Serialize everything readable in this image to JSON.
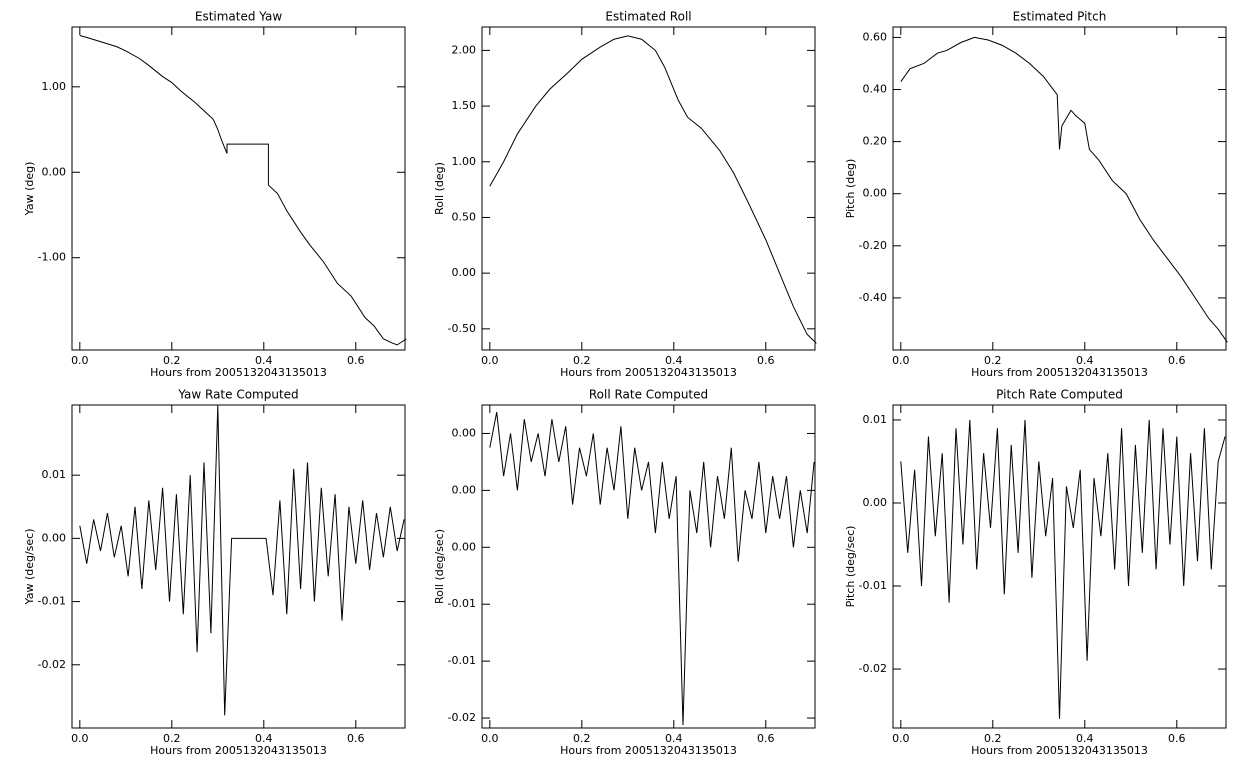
{
  "chart_data": [
    {
      "type": "line",
      "title": "Estimated Yaw",
      "xlabel": "Hours from 2005132043135013",
      "ylabel": "Yaw (deg)",
      "x": [
        0,
        0.02,
        0.05,
        0.08,
        0.1,
        0.13,
        0.15,
        0.18,
        0.2,
        0.22,
        0.25,
        0.27,
        0.29,
        0.3,
        0.31,
        0.32,
        0.32,
        0.41,
        0.41,
        0.43,
        0.45,
        0.48,
        0.5,
        0.53,
        0.56,
        0.59,
        0.62,
        0.64,
        0.66,
        0.68,
        0.69,
        0.71
      ],
      "values": [
        1.6,
        1.57,
        1.52,
        1.47,
        1.42,
        1.33,
        1.25,
        1.12,
        1.05,
        0.95,
        0.82,
        0.72,
        0.62,
        0.5,
        0.35,
        0.22,
        0.33,
        0.33,
        -0.15,
        -0.25,
        -0.45,
        -0.7,
        -0.85,
        -1.05,
        -1.3,
        -1.45,
        -1.7,
        -1.8,
        -1.95,
        -2.0,
        -2.02,
        -1.95
      ],
      "color": "#000000",
      "xlim": [
        -0.017,
        0.707
      ],
      "xticks": [
        {
          "value": 0,
          "label": "0.0"
        },
        0.2,
        0.4,
        0.6
      ],
      "ylim": [
        -2.08,
        1.7
      ],
      "yticks": [
        {
          "value": 1,
          "label": "1.00"
        },
        {
          "value": 0,
          "label": "0.00"
        },
        {
          "value": -1,
          "label": "-1.00"
        }
      ]
    },
    {
      "type": "line",
      "title": "Estimated Roll",
      "xlabel": "Hours from 2005132043135013",
      "ylabel": "Roll (deg)",
      "x": [
        0,
        0.03,
        0.06,
        0.1,
        0.13,
        0.17,
        0.2,
        0.24,
        0.27,
        0.3,
        0.33,
        0.36,
        0.38,
        0.41,
        0.43,
        0.46,
        0.5,
        0.53,
        0.56,
        0.6,
        0.63,
        0.66,
        0.69,
        0.71
      ],
      "values": [
        0.78,
        1.0,
        1.25,
        1.5,
        1.65,
        1.8,
        1.92,
        2.03,
        2.1,
        2.13,
        2.1,
        2.0,
        1.85,
        1.55,
        1.4,
        1.3,
        1.1,
        0.9,
        0.65,
        0.3,
        0.0,
        -0.3,
        -0.55,
        -0.63
      ],
      "color": "#000000",
      "xlim": [
        -0.017,
        0.707
      ],
      "xticks": [
        {
          "value": 0,
          "label": "0.0"
        },
        0.2,
        0.4,
        0.6
      ],
      "ylim": [
        -0.69,
        2.21
      ],
      "yticks": [
        {
          "value": 2,
          "label": "2.00"
        },
        {
          "value": 1.5,
          "label": "1.50"
        },
        {
          "value": 1,
          "label": "1.00"
        },
        {
          "value": 0.5,
          "label": "0.50"
        },
        {
          "value": 0,
          "label": "0.00"
        },
        {
          "value": -0.5,
          "label": "-0.50"
        }
      ]
    },
    {
      "type": "line",
      "title": "Estimated Pitch",
      "xlabel": "Hours from 2005132043135013",
      "ylabel": "Pitch (deg)",
      "x": [
        0,
        0.02,
        0.05,
        0.08,
        0.1,
        0.13,
        0.16,
        0.19,
        0.22,
        0.25,
        0.28,
        0.31,
        0.34,
        0.345,
        0.35,
        0.37,
        0.38,
        0.4,
        0.41,
        0.43,
        0.46,
        0.49,
        0.52,
        0.55,
        0.58,
        0.61,
        0.64,
        0.67,
        0.69,
        0.71
      ],
      "values": [
        0.43,
        0.48,
        0.5,
        0.54,
        0.55,
        0.58,
        0.6,
        0.59,
        0.57,
        0.54,
        0.5,
        0.45,
        0.38,
        0.17,
        0.26,
        0.32,
        0.3,
        0.27,
        0.17,
        0.13,
        0.05,
        0.0,
        -0.1,
        -0.18,
        -0.25,
        -0.32,
        -0.4,
        -0.48,
        -0.52,
        -0.57
      ],
      "color": "#000000",
      "xlim": [
        -0.017,
        0.707
      ],
      "xticks": [
        {
          "value": 0,
          "label": "0.0"
        },
        0.2,
        0.4,
        0.6
      ],
      "ylim": [
        -0.6,
        0.64
      ],
      "yticks": [
        {
          "value": 0.6,
          "label": "0.60"
        },
        {
          "value": 0.4,
          "label": "0.40"
        },
        {
          "value": 0.2,
          "label": "0.20"
        },
        {
          "value": 0,
          "label": "0.00"
        },
        {
          "value": -0.2,
          "label": "-0.20"
        },
        {
          "value": -0.4,
          "label": "-0.40"
        }
      ]
    },
    {
      "type": "line",
      "title": "Yaw Rate Computed",
      "xlabel": "Hours from 2005132043135013",
      "ylabel": "Yaw (deg/sec)",
      "x": [
        0,
        0.015,
        0.03,
        0.045,
        0.06,
        0.075,
        0.09,
        0.105,
        0.12,
        0.135,
        0.15,
        0.165,
        0.18,
        0.195,
        0.21,
        0.225,
        0.24,
        0.255,
        0.27,
        0.285,
        0.3,
        0.315,
        0.33,
        0.345,
        0.36,
        0.375,
        0.39,
        0.405,
        0.42,
        0.435,
        0.45,
        0.465,
        0.48,
        0.495,
        0.51,
        0.525,
        0.54,
        0.555,
        0.57,
        0.585,
        0.6,
        0.615,
        0.63,
        0.645,
        0.66,
        0.675,
        0.69,
        0.705
      ],
      "values": [
        0.002,
        -0.004,
        0.003,
        -0.002,
        0.004,
        -0.003,
        0.002,
        -0.006,
        0.005,
        -0.008,
        0.006,
        -0.005,
        0.008,
        -0.01,
        0.007,
        -0.012,
        0.01,
        -0.018,
        0.012,
        -0.015,
        0.021,
        -0.028,
        0,
        0,
        0,
        0,
        0,
        0,
        -0.009,
        0.006,
        -0.012,
        0.011,
        -0.008,
        0.012,
        -0.01,
        0.008,
        -0.006,
        0.007,
        -0.013,
        0.005,
        -0.004,
        0.006,
        -0.005,
        0.004,
        -0.003,
        0.005,
        -0.002,
        0.003
      ],
      "color": "#000000",
      "xlim": [
        -0.017,
        0.707
      ],
      "xticks": [
        {
          "value": 0,
          "label": "0.0"
        },
        0.2,
        0.4,
        0.6
      ],
      "ylim": [
        -0.03,
        0.0211
      ],
      "yticks": [
        0.01,
        {
          "value": 0,
          "label": "0.00"
        },
        -0.01,
        -0.02
      ]
    },
    {
      "type": "line",
      "title": "Roll Rate Computed",
      "xlabel": "Hours from 2005132043135013",
      "ylabel": "Roll (deg/sec)",
      "x": [
        0,
        0.015,
        0.03,
        0.045,
        0.06,
        0.075,
        0.09,
        0.105,
        0.12,
        0.135,
        0.15,
        0.165,
        0.18,
        0.195,
        0.21,
        0.225,
        0.24,
        0.255,
        0.27,
        0.285,
        0.3,
        0.315,
        0.33,
        0.345,
        0.36,
        0.375,
        0.39,
        0.405,
        0.42,
        0.435,
        0.45,
        0.465,
        0.48,
        0.495,
        0.51,
        0.525,
        0.54,
        0.555,
        0.57,
        0.585,
        0.6,
        0.615,
        0.63,
        0.645,
        0.66,
        0.675,
        0.69,
        0.705
      ],
      "values": [
        0.003,
        0.0055,
        0.001,
        0.004,
        0.0,
        0.005,
        0.002,
        0.004,
        0.001,
        0.005,
        0.002,
        0.0045,
        -0.001,
        0.003,
        0.001,
        0.004,
        -0.001,
        0.003,
        0.0,
        0.0045,
        -0.002,
        0.003,
        0.0,
        0.002,
        -0.003,
        0.002,
        -0.002,
        0.001,
        -0.0165,
        0.0,
        -0.003,
        0.002,
        -0.004,
        0.001,
        -0.002,
        0.003,
        -0.005,
        0.0,
        -0.002,
        0.002,
        -0.003,
        0.001,
        -0.002,
        0.001,
        -0.004,
        0.0,
        -0.003,
        0.002
      ],
      "color": "#000000",
      "xlim": [
        -0.017,
        0.707
      ],
      "xticks": [
        {
          "value": 0,
          "label": "0.0"
        },
        0.2,
        0.4,
        0.6
      ],
      "ylim": [
        -0.0167,
        0.006
      ],
      "yticks": [
        {
          "value": 0.004,
          "label": "0.00"
        },
        {
          "value": 0,
          "label": "0.00"
        },
        {
          "value": -0.004,
          "label": "0.00"
        },
        {
          "value": -0.008,
          "label": "-0.01"
        },
        {
          "value": -0.012,
          "label": "-0.01"
        },
        {
          "value": -0.016,
          "label": "-0.02"
        }
      ]
    },
    {
      "type": "line",
      "title": "Pitch Rate Computed",
      "xlabel": "Hours from 2005132043135013",
      "ylabel": "Pitch (deg/sec)",
      "x": [
        0,
        0.015,
        0.03,
        0.045,
        0.06,
        0.075,
        0.09,
        0.105,
        0.12,
        0.135,
        0.15,
        0.165,
        0.18,
        0.195,
        0.21,
        0.225,
        0.24,
        0.255,
        0.27,
        0.285,
        0.3,
        0.315,
        0.33,
        0.345,
        0.36,
        0.375,
        0.39,
        0.405,
        0.42,
        0.435,
        0.45,
        0.465,
        0.48,
        0.495,
        0.51,
        0.525,
        0.54,
        0.555,
        0.57,
        0.585,
        0.6,
        0.615,
        0.63,
        0.645,
        0.66,
        0.675,
        0.69,
        0.705
      ],
      "values": [
        0.005,
        -0.006,
        0.004,
        -0.01,
        0.008,
        -0.004,
        0.006,
        -0.012,
        0.009,
        -0.005,
        0.01,
        -0.008,
        0.006,
        -0.003,
        0.009,
        -0.011,
        0.007,
        -0.006,
        0.01,
        -0.009,
        0.005,
        -0.004,
        0.003,
        -0.026,
        0.002,
        -0.003,
        0.004,
        -0.019,
        0.003,
        -0.004,
        0.006,
        -0.008,
        0.009,
        -0.01,
        0.007,
        -0.006,
        0.01,
        -0.008,
        0.009,
        -0.005,
        0.008,
        -0.01,
        0.006,
        -0.007,
        0.009,
        -0.008,
        0.005,
        0.008
      ],
      "color": "#000000",
      "xlim": [
        -0.017,
        0.707
      ],
      "xticks": [
        {
          "value": 0,
          "label": "0.0"
        },
        0.2,
        0.4,
        0.6
      ],
      "ylim": [
        -0.0271,
        0.0118
      ],
      "yticks": [
        0.01,
        {
          "value": 0,
          "label": "0.00"
        },
        -0.01,
        -0.02
      ]
    }
  ]
}
